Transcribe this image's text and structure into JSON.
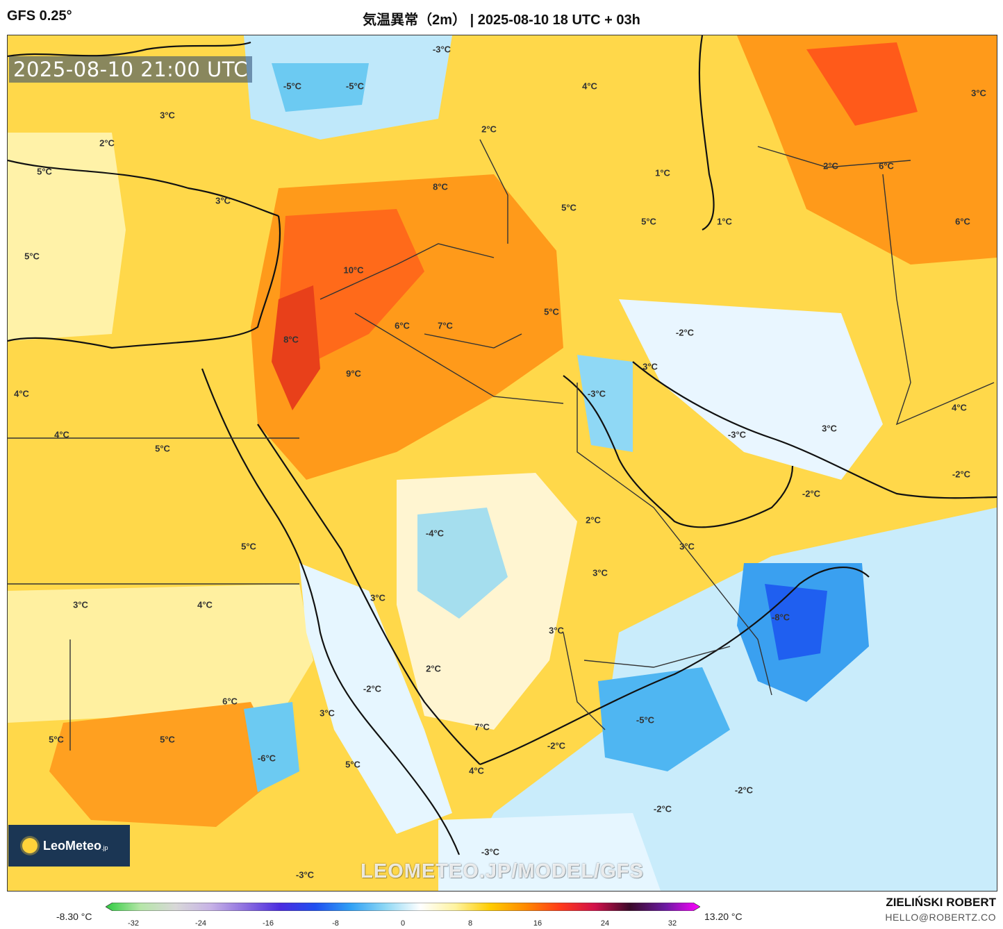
{
  "header": {
    "model": "GFS 0.25°",
    "title": "気温異常（2m） | 2025-08-10 18 UTC + 03h"
  },
  "map": {
    "valid_time": "2025-08-10 21:00 UTC",
    "watermark": "LEOMETEO.JP/MODEL/GFS",
    "logo": {
      "brand": "LeoMeteo",
      "suffix": ".jp"
    },
    "labels": [
      {
        "text": "-5°C"
      },
      {
        "text": "-5°C"
      },
      {
        "text": "-3°C"
      },
      {
        "text": "4°C"
      },
      {
        "text": "3°C"
      },
      {
        "text": "3°C"
      },
      {
        "text": "2°C"
      },
      {
        "text": "2°C"
      },
      {
        "text": "5°C"
      },
      {
        "text": "2°C"
      },
      {
        "text": "6°C"
      },
      {
        "text": "1°C"
      },
      {
        "text": "8°C"
      },
      {
        "text": "3°C"
      },
      {
        "text": "6°C"
      },
      {
        "text": "5°C"
      },
      {
        "text": "5°C"
      },
      {
        "text": "1°C"
      },
      {
        "text": "10°C"
      },
      {
        "text": "5°C"
      },
      {
        "text": "6°C"
      },
      {
        "text": "7°C"
      },
      {
        "text": "-2°C"
      },
      {
        "text": "8°C"
      },
      {
        "text": "3°C"
      },
      {
        "text": "9°C"
      },
      {
        "text": "5°C"
      },
      {
        "text": "-3°C"
      },
      {
        "text": "4°C"
      },
      {
        "text": "4°C"
      },
      {
        "text": "3°C"
      },
      {
        "text": "4°C"
      },
      {
        "text": "-3°C"
      },
      {
        "text": "5°C"
      },
      {
        "text": "-2°C"
      },
      {
        "text": "-2°C"
      },
      {
        "text": "2°C"
      },
      {
        "text": "-4°C"
      },
      {
        "text": "5°C"
      },
      {
        "text": "3°C"
      },
      {
        "text": "3°C"
      },
      {
        "text": "3°C"
      },
      {
        "text": "4°C"
      },
      {
        "text": "3°C"
      },
      {
        "text": "-8°C"
      },
      {
        "text": "3°C"
      },
      {
        "text": "-2°C"
      },
      {
        "text": "2°C"
      },
      {
        "text": "6°C"
      },
      {
        "text": "3°C"
      },
      {
        "text": "5°C"
      },
      {
        "text": "5°C"
      },
      {
        "text": "-6°C"
      },
      {
        "text": "-5°C"
      },
      {
        "text": "7°C"
      },
      {
        "text": "-2°C"
      },
      {
        "text": "5°C"
      },
      {
        "text": "4°C"
      },
      {
        "text": "-2°C"
      },
      {
        "text": "-2°C"
      },
      {
        "text": "-3°C"
      },
      {
        "text": "-3°C"
      }
    ]
  },
  "colorbar": {
    "min_label": "-8.30 °C",
    "max_label": "13.20 °C",
    "ticks": [
      "-32",
      "-24",
      "-16",
      "-8",
      "0",
      "8",
      "16",
      "24",
      "32"
    ],
    "colors": [
      "#2ecc40",
      "#b5e6a8",
      "#d8d8d8",
      "#c7b3e6",
      "#8d6fe0",
      "#4a2be0",
      "#1f4ff0",
      "#2fa0f5",
      "#8fd8f5",
      "#ffffff",
      "#fff3a0",
      "#ffcc00",
      "#ff8a00",
      "#ff3a1a",
      "#d0104a",
      "#3a0a2a",
      "#6a1aa0",
      "#ff00ff"
    ]
  },
  "credit": {
    "name": "ZIELIŃSKI ROBERT",
    "email": "HELLO@ROBERTZ.CO"
  }
}
